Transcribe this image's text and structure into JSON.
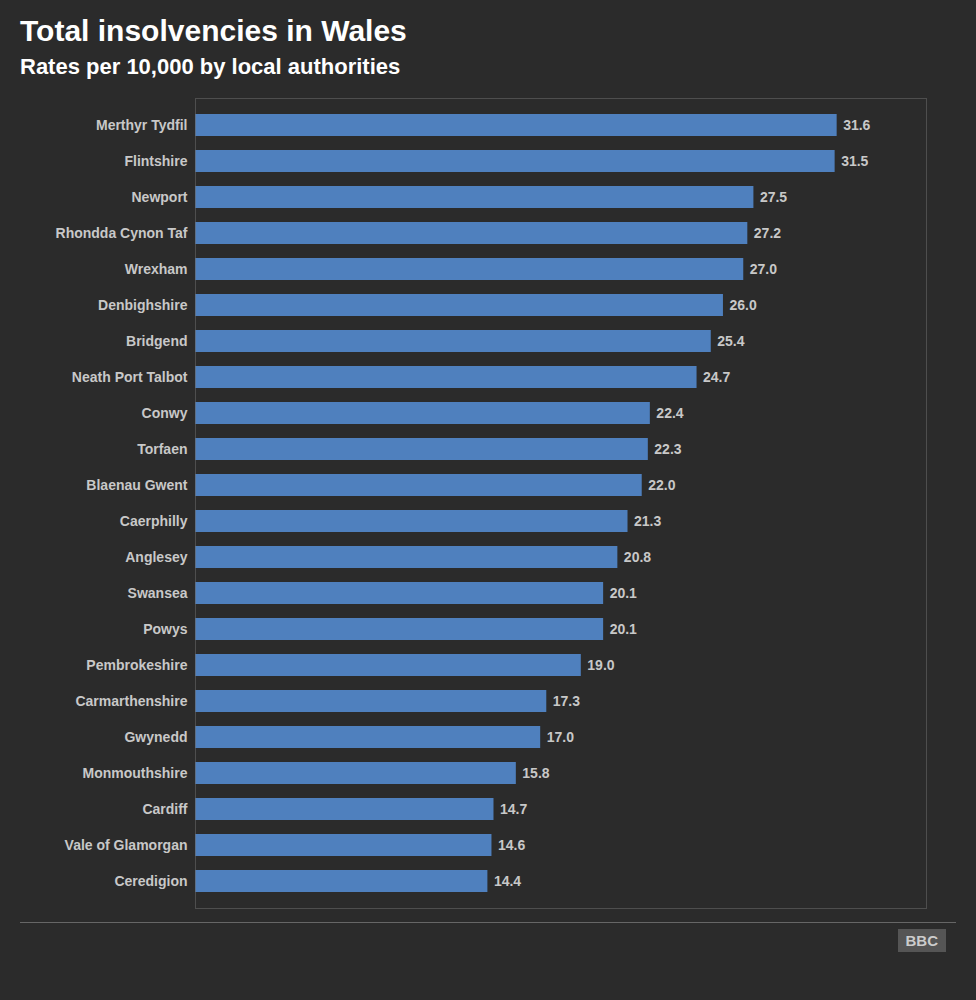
{
  "chart_data": {
    "type": "bar",
    "orientation": "horizontal",
    "title": "Total insolvencies in Wales",
    "subtitle": "Rates per 10,000 by local authorities",
    "categories": [
      "Merthyr Tydfil",
      "Flintshire",
      "Newport",
      "Rhondda Cynon Taf",
      "Wrexham",
      "Denbighshire",
      "Bridgend",
      "Neath Port Talbot",
      "Conwy",
      "Torfaen",
      "Blaenau Gwent",
      "Caerphilly",
      "Anglesey",
      "Swansea",
      "Powys",
      "Pembrokeshire",
      "Carmarthenshire",
      "Gwynedd",
      "Monmouthshire",
      "Cardiff",
      "Vale of Glamorgan",
      "Ceredigion"
    ],
    "values": [
      31.6,
      31.5,
      27.5,
      27.2,
      27.0,
      26.0,
      25.4,
      24.7,
      22.4,
      22.3,
      22.0,
      21.3,
      20.8,
      20.1,
      20.1,
      19.0,
      17.3,
      17.0,
      15.8,
      14.7,
      14.6,
      14.4
    ],
    "value_labels": [
      "31.6",
      "31.5",
      "27.5",
      "27.2",
      "27.0",
      "26.0",
      "25.4",
      "24.7",
      "22.4",
      "22.3",
      "22.0",
      "21.3",
      "20.8",
      "20.1",
      "20.1",
      "19.0",
      "17.3",
      "17.0",
      "15.8",
      "14.7",
      "14.6",
      "14.4"
    ],
    "color": "#4f80be",
    "xlim": [
      0,
      36
    ],
    "grid": false,
    "data_labels": true,
    "tick_labels": "y",
    "annotations": [
      "BBC"
    ]
  }
}
